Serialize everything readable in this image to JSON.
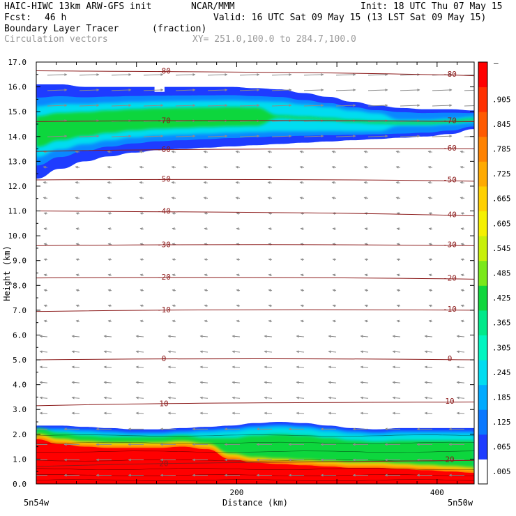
{
  "header": {
    "model": "HAIC-HIWC 13km ARW-GFS init",
    "org": "NCAR/MMM",
    "init": "Init: 18 UTC Thu 07 May 15",
    "fcst_label": "Fcst:",
    "fcst_value": "46 h",
    "valid": "Valid: 16 UTC Sat 09 May 15 (13 LST Sat 09 May 15)",
    "field": "Boundary Layer Tracer",
    "units": "(fraction)",
    "vectors": "Circulation vectors",
    "xy": "XY= 251.0,100.0 to 284.7,100.0"
  },
  "chart_data": {
    "type": "heatmap",
    "title": "Boundary Layer Tracer",
    "xlabel": "Distance (km)",
    "ylabel": "Height (km)",
    "xlim": [
      0,
      437
    ],
    "ylim": [
      0,
      17
    ],
    "x_ticks": [
      {
        "value": 200,
        "label": "200"
      },
      {
        "value": 400,
        "label": "400"
      }
    ],
    "x_end_labels": [
      "5n54w",
      "5n50w"
    ],
    "y_ticks": [
      {
        "value": 0,
        "label": "0.0"
      },
      {
        "value": 1,
        "label": "1.0"
      },
      {
        "value": 2,
        "label": "2.0"
      },
      {
        "value": 3,
        "label": "3.0"
      },
      {
        "value": 4,
        "label": "4.0"
      },
      {
        "value": 5,
        "label": "5.0"
      },
      {
        "value": 6,
        "label": "6.0"
      },
      {
        "value": 7,
        "label": "7.0"
      },
      {
        "value": 8,
        "label": "8.0"
      },
      {
        "value": 9,
        "label": "9.0"
      },
      {
        "value": 10,
        "label": "10.0"
      },
      {
        "value": 11,
        "label": "11.0"
      },
      {
        "value": 12,
        "label": "12.0"
      },
      {
        "value": 13,
        "label": "13.0"
      },
      {
        "value": 14,
        "label": "14.0"
      },
      {
        "value": 15,
        "label": "15.0"
      },
      {
        "value": 16,
        "label": "16.0"
      },
      {
        "value": 17,
        "label": "17.0"
      }
    ],
    "colorbar": {
      "labels": [
        ".005",
        ".065",
        ".125",
        ".185",
        ".245",
        ".305",
        ".365",
        ".425",
        ".485",
        ".545",
        ".605",
        ".665",
        ".725",
        ".785",
        ".845",
        ".905"
      ],
      "top_label": "–",
      "colors": [
        "#ffffff",
        "#1e3cff",
        "#0a78ff",
        "#00aaff",
        "#00dcf0",
        "#00f5c0",
        "#00e98a",
        "#10d63c",
        "#7ae81a",
        "#c8f00a",
        "#f5f000",
        "#ffd000",
        "#ffaa00",
        "#ff8200",
        "#ff5a00",
        "#ff3000",
        "#ff0000"
      ]
    },
    "upper_layer": {
      "top_km": [
        16.1,
        16.1,
        16.0,
        16.0,
        16.0,
        16.0,
        16.0,
        16.0,
        16.0,
        15.95,
        15.9,
        15.75,
        15.6,
        15.4,
        15.25,
        15.15,
        15.1,
        15.1,
        15.05
      ],
      "bottom_km": [
        12.3,
        12.7,
        13.0,
        13.2,
        13.35,
        13.45,
        13.5,
        13.55,
        13.6,
        13.65,
        13.7,
        13.75,
        13.8,
        13.85,
        13.9,
        13.95,
        14.0,
        14.1,
        14.3
      ],
      "gap_km": {
        "x": [
          118,
          128
        ],
        "top": 15.8
      }
    },
    "boundary_layer": {
      "top_km": [
        2.35,
        2.35,
        2.3,
        2.25,
        2.2,
        2.2,
        2.25,
        2.3,
        2.35,
        2.45,
        2.5,
        2.45,
        2.35,
        2.25,
        2.2,
        2.25,
        2.25,
        2.25,
        2.25
      ],
      "red_top_km": [
        1.8,
        1.6,
        1.5,
        1.45,
        1.45,
        1.45,
        1.5,
        1.4,
        1.0,
        0.85,
        0.8,
        0.75,
        0.7,
        0.65,
        0.65,
        0.6,
        0.55,
        0.5,
        0.45
      ]
    },
    "temperature_contours": [
      {
        "label": "-80",
        "left_km": 16.65,
        "right_km": 16.45
      },
      {
        "label": "-70",
        "left_km": 14.6,
        "right_km": 14.6
      },
      {
        "label": "-60",
        "left_km": 13.4,
        "right_km": 13.5
      },
      {
        "label": "-50",
        "left_km": 12.25,
        "right_km": 12.2
      },
      {
        "label": "-40",
        "left_km": 11.0,
        "right_km": 10.8
      },
      {
        "label": "-30",
        "left_km": 9.6,
        "right_km": 9.6
      },
      {
        "label": "-20",
        "left_km": 8.3,
        "right_km": 8.25
      },
      {
        "label": "-10",
        "left_km": 6.95,
        "right_km": 7.0
      },
      {
        "label": "0",
        "left_km": 5.0,
        "right_km": 5.0
      },
      {
        "label": "10",
        "left_km": 3.15,
        "right_km": 3.3
      },
      {
        "label": "20",
        "left_km": 0.7,
        "right_km": 0.95
      }
    ]
  }
}
